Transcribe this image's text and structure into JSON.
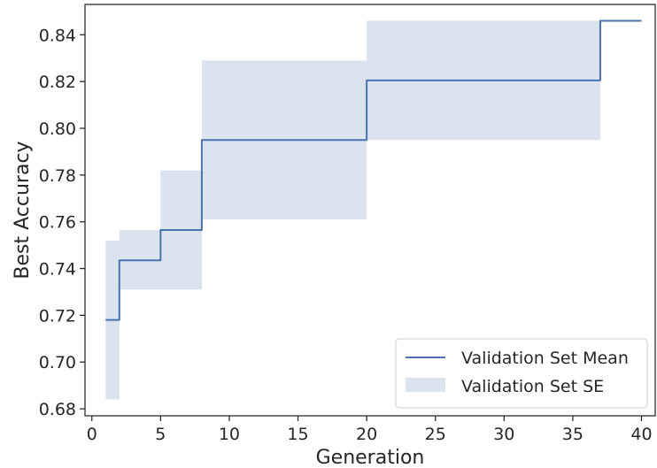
{
  "chart_data": {
    "type": "line",
    "xlabel": "Generation",
    "ylabel": "Best Accuracy",
    "xlim": [
      -0.5,
      41.0
    ],
    "ylim": [
      0.677,
      0.853
    ],
    "xticks": [
      0,
      5,
      10,
      15,
      20,
      25,
      30,
      35,
      40
    ],
    "yticks": [
      0.68,
      0.7,
      0.72,
      0.74,
      0.76,
      0.78,
      0.8,
      0.82,
      0.84
    ],
    "xtick_labels": [
      "0",
      "5",
      "10",
      "15",
      "20",
      "25",
      "30",
      "35",
      "40"
    ],
    "ytick_labels": [
      "0.68",
      "0.70",
      "0.72",
      "0.74",
      "0.76",
      "0.78",
      "0.80",
      "0.82",
      "0.84"
    ],
    "grid": false,
    "legend_position": "bottom-right",
    "series": [
      {
        "name": "Validation Set Mean",
        "kind": "line",
        "color": "#4c72b0",
        "x": [
          1,
          2,
          3,
          4,
          5,
          6,
          7,
          8,
          9,
          10,
          11,
          12,
          13,
          14,
          15,
          16,
          17,
          18,
          19,
          20,
          21,
          22,
          23,
          24,
          25,
          26,
          27,
          28,
          29,
          30,
          31,
          32,
          33,
          34,
          35,
          36,
          37,
          38,
          39,
          40
        ],
        "y": [
          0.718,
          0.7435,
          0.7435,
          0.7435,
          0.7565,
          0.7565,
          0.7565,
          0.795,
          0.795,
          0.795,
          0.795,
          0.795,
          0.795,
          0.795,
          0.795,
          0.795,
          0.795,
          0.795,
          0.795,
          0.8205,
          0.8205,
          0.8205,
          0.8205,
          0.8205,
          0.8205,
          0.8205,
          0.8205,
          0.8205,
          0.8205,
          0.8205,
          0.8205,
          0.8205,
          0.8205,
          0.8205,
          0.8205,
          0.8205,
          0.846,
          0.846,
          0.846,
          0.846
        ]
      },
      {
        "name": "Validation Set SE",
        "kind": "band",
        "color": "#4c72b0",
        "x": [
          1,
          2,
          3,
          4,
          5,
          6,
          7,
          8,
          9,
          10,
          11,
          12,
          13,
          14,
          15,
          16,
          17,
          18,
          19,
          20,
          21,
          22,
          23,
          24,
          25,
          26,
          27,
          28,
          29,
          30,
          31,
          32,
          33,
          34,
          35,
          36,
          37,
          38,
          39,
          40
        ],
        "lower": [
          0.684,
          0.731,
          0.731,
          0.731,
          0.731,
          0.731,
          0.731,
          0.761,
          0.761,
          0.761,
          0.761,
          0.761,
          0.761,
          0.761,
          0.761,
          0.761,
          0.761,
          0.761,
          0.761,
          0.795,
          0.795,
          0.795,
          0.795,
          0.795,
          0.795,
          0.795,
          0.795,
          0.795,
          0.795,
          0.795,
          0.795,
          0.795,
          0.795,
          0.795,
          0.795,
          0.795,
          0.846,
          0.846,
          0.846,
          0.846
        ],
        "upper": [
          0.752,
          0.7565,
          0.7565,
          0.7565,
          0.782,
          0.782,
          0.782,
          0.829,
          0.829,
          0.829,
          0.829,
          0.829,
          0.829,
          0.829,
          0.829,
          0.829,
          0.829,
          0.829,
          0.829,
          0.846,
          0.846,
          0.846,
          0.846,
          0.846,
          0.846,
          0.846,
          0.846,
          0.846,
          0.846,
          0.846,
          0.846,
          0.846,
          0.846,
          0.846,
          0.846,
          0.846,
          0.846,
          0.846,
          0.846,
          0.846
        ]
      }
    ]
  }
}
